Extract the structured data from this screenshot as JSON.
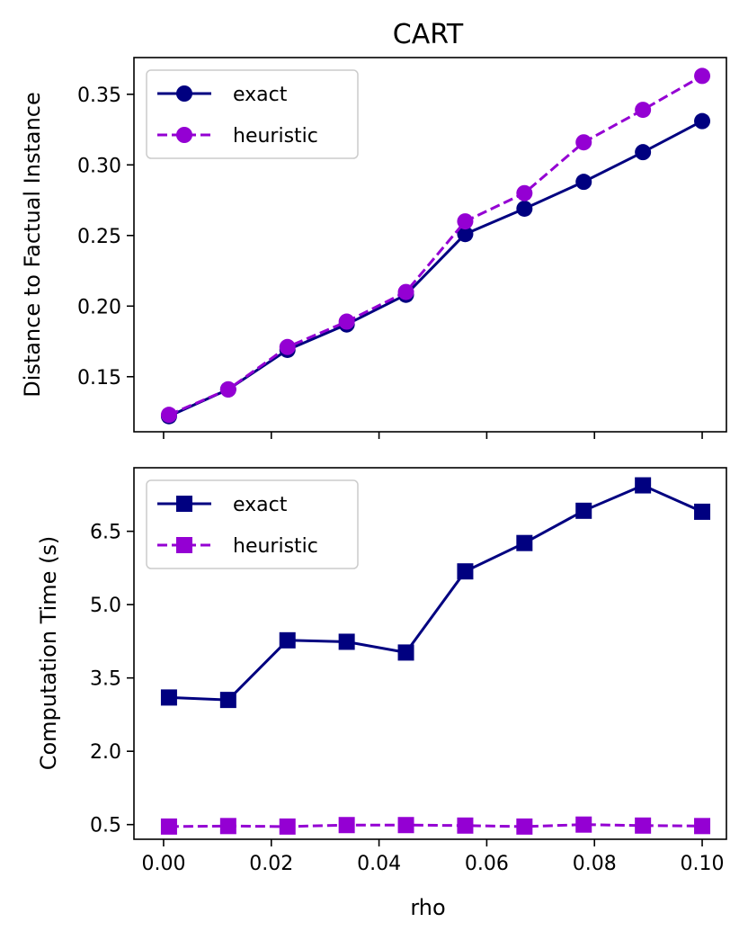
{
  "chart_data": [
    {
      "type": "line",
      "title": "CART",
      "xlabel": "",
      "ylabel": "Distance to Factual Instance",
      "xlim": [
        -0.0055,
        0.1045
      ],
      "ylim": [
        0.111,
        0.376
      ],
      "x": [
        0.001,
        0.012,
        0.023,
        0.034,
        0.045,
        0.056,
        0.067,
        0.078,
        0.089,
        0.1
      ],
      "x_ticks": [
        "0.00",
        "0.02",
        "0.04",
        "0.06",
        "0.08",
        "0.10"
      ],
      "x_tick_values": [
        0.0,
        0.02,
        0.04,
        0.06,
        0.08,
        0.1
      ],
      "x_tick_labels_visible": false,
      "y_ticks": [
        "0.15",
        "0.20",
        "0.25",
        "0.30",
        "0.35"
      ],
      "y_tick_values": [
        0.15,
        0.2,
        0.25,
        0.3,
        0.35
      ],
      "legend_position": "upper-left",
      "series": [
        {
          "name": "exact",
          "marker": "circle",
          "line": "solid",
          "color": "#000080",
          "values": [
            0.122,
            0.141,
            0.169,
            0.187,
            0.208,
            0.251,
            0.269,
            0.288,
            0.309,
            0.331
          ]
        },
        {
          "name": "heuristic",
          "marker": "circle",
          "line": "dashed",
          "color": "#9400d3",
          "values": [
            0.123,
            0.141,
            0.171,
            0.189,
            0.21,
            0.26,
            0.28,
            0.316,
            0.339,
            0.363
          ]
        }
      ]
    },
    {
      "type": "line",
      "title": "",
      "xlabel": "rho",
      "ylabel": "Computation Time (s)",
      "xlim": [
        -0.0055,
        0.1045
      ],
      "ylim": [
        0.2,
        7.8
      ],
      "x": [
        0.001,
        0.012,
        0.023,
        0.034,
        0.045,
        0.056,
        0.067,
        0.078,
        0.089,
        0.1
      ],
      "x_ticks": [
        "0.00",
        "0.02",
        "0.04",
        "0.06",
        "0.08",
        "0.10"
      ],
      "x_tick_values": [
        0.0,
        0.02,
        0.04,
        0.06,
        0.08,
        0.1
      ],
      "x_tick_labels_visible": true,
      "y_ticks": [
        "0.5",
        "2.0",
        "3.5",
        "5.0",
        "6.5"
      ],
      "y_tick_values": [
        0.5,
        2.0,
        3.5,
        5.0,
        6.5
      ],
      "legend_position": "upper-left",
      "series": [
        {
          "name": "exact",
          "marker": "square",
          "line": "solid",
          "color": "#000080",
          "values": [
            3.1,
            3.05,
            4.27,
            4.24,
            4.02,
            5.68,
            6.26,
            6.92,
            7.44,
            6.9
          ]
        },
        {
          "name": "heuristic",
          "marker": "square",
          "line": "dashed",
          "color": "#9400d3",
          "values": [
            0.46,
            0.47,
            0.46,
            0.49,
            0.49,
            0.48,
            0.46,
            0.5,
            0.48,
            0.47
          ]
        }
      ]
    }
  ]
}
